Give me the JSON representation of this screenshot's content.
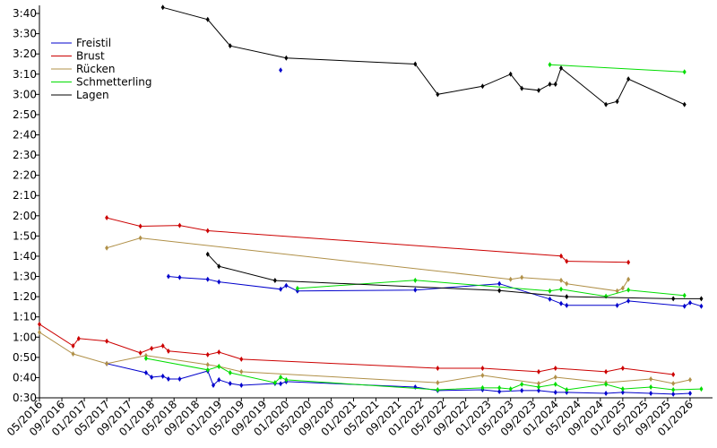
{
  "chart_data": {
    "type": "line",
    "xlim": [
      "05/2016",
      "05/2026"
    ],
    "ylim": [
      30,
      224
    ],
    "legend": "upper left",
    "xticks": [
      "05/2016",
      "09/2016",
      "01/2017",
      "05/2017",
      "09/2017",
      "01/2018",
      "05/2018",
      "09/2018",
      "01/2019",
      "05/2019",
      "09/2019",
      "01/2020",
      "05/2020",
      "09/2020",
      "01/2021",
      "05/2021",
      "09/2021",
      "01/2022",
      "05/2022",
      "09/2022",
      "01/2023",
      "05/2023",
      "09/2023",
      "01/2024",
      "05/2024",
      "09/2024",
      "01/2025",
      "05/2025",
      "09/2025",
      "01/2026"
    ],
    "yticks": [
      {
        "value": 30,
        "label": "0:30"
      },
      {
        "value": 40,
        "label": "0:40"
      },
      {
        "value": 50,
        "label": "0:50"
      },
      {
        "value": 60,
        "label": "1:00"
      },
      {
        "value": 70,
        "label": "1:10"
      },
      {
        "value": 80,
        "label": "1:20"
      },
      {
        "value": 90,
        "label": "1:30"
      },
      {
        "value": 100,
        "label": "1:40"
      },
      {
        "value": 110,
        "label": "1:50"
      },
      {
        "value": 120,
        "label": "2:00"
      },
      {
        "value": 130,
        "label": "2:10"
      },
      {
        "value": 140,
        "label": "2:20"
      },
      {
        "value": 150,
        "label": "2:30"
      },
      {
        "value": 160,
        "label": "2:40"
      },
      {
        "value": 170,
        "label": "2:50"
      },
      {
        "value": 180,
        "label": "3:00"
      },
      {
        "value": 190,
        "label": "3:10"
      },
      {
        "value": 200,
        "label": "3:20"
      },
      {
        "value": 210,
        "label": "3:30"
      },
      {
        "value": 220,
        "label": "3:40"
      }
    ],
    "series": [
      {
        "name": "Freistil",
        "color": "#0000cc",
        "x": [
          "12/2019",
          null,
          "04/2018",
          "06/2018",
          "11/2018",
          "01/2019",
          "12/2019",
          "01/2020",
          "03/2020",
          "12/2021",
          "03/2023",
          "12/2023",
          "02/2024",
          "03/2024",
          "12/2024",
          "02/2025",
          "12/2025",
          "01/2026",
          "03/2026",
          null,
          "05/2017",
          "12/2017",
          "01/2018",
          "03/2018",
          "04/2018",
          "06/2018",
          "11/2018",
          "12/2018",
          "01/2019",
          "03/2019",
          "05/2019",
          "11/2019",
          "12/2019",
          "01/2020",
          "12/2021",
          "04/2022",
          "12/2022",
          "03/2023",
          "07/2023",
          "10/2023",
          "01/2024",
          "03/2024",
          "10/2024",
          "01/2025",
          "06/2025",
          "10/2025",
          "01/2026"
        ],
        "values": [
          192,
          null,
          90,
          89.5,
          88.6,
          87.3,
          83.7,
          85.5,
          82.8,
          83.3,
          86.4,
          78.8,
          76.6,
          75.7,
          75.7,
          77.9,
          75.3,
          77,
          75.3,
          null,
          46.9,
          42.4,
          40.2,
          40.7,
          39.3,
          39.3,
          43.3,
          36.2,
          38.9,
          37.1,
          36.2,
          37.1,
          37,
          38,
          35.3,
          33.6,
          34,
          33.1,
          33.6,
          33.6,
          32.7,
          32.7,
          32.2,
          32.7,
          32.2,
          31.8,
          32.2
        ]
      },
      {
        "name": "Brust",
        "color": "#cc0000",
        "x": [
          "05/2017",
          "11/2017",
          "06/2018",
          "11/2018",
          "02/2024",
          "03/2024",
          "02/2025",
          null,
          "05/2016",
          "11/2016",
          "12/2016",
          "05/2017",
          "11/2017",
          "01/2018",
          "03/2018",
          "04/2018",
          "11/2018",
          "01/2019",
          "05/2019",
          "04/2022",
          "12/2022",
          "10/2023",
          "01/2024",
          "10/2024",
          "01/2025",
          "10/2025"
        ],
        "values": [
          119,
          114.8,
          115.2,
          112.6,
          100.1,
          97.5,
          97,
          null,
          66.4,
          55.7,
          59.3,
          58,
          52.2,
          54.4,
          55.7,
          53.1,
          51.3,
          52.6,
          49.1,
          44.6,
          44.6,
          42.9,
          44.6,
          42.9,
          44.6,
          41.5
        ]
      },
      {
        "name": "Rücken",
        "color": "#b09048",
        "x": [
          "05/2017",
          "11/2017",
          "05/2023",
          "07/2023",
          "02/2024",
          "03/2024",
          "12/2024",
          "01/2025",
          "02/2025",
          null,
          "05/2016",
          "11/2016",
          "05/2017",
          "12/2017",
          "11/2018",
          "01/2019",
          "05/2019",
          "04/2022",
          "12/2022",
          "10/2023",
          "01/2024",
          "10/2024",
          "06/2025",
          "10/2025",
          "01/2026"
        ],
        "values": [
          104.1,
          109,
          88.6,
          89.5,
          88.1,
          86.4,
          82.8,
          84.2,
          88.6,
          null,
          62.4,
          51.7,
          46.9,
          50.9,
          46.4,
          45.5,
          42.9,
          37.5,
          41.1,
          37.1,
          40.2,
          37.5,
          39.3,
          37.1,
          38.9
        ]
      },
      {
        "name": "Schmetterling",
        "color": "#00dd00",
        "x": [
          "12/2023",
          "12/2025",
          null,
          "03/2020",
          "12/2021",
          "12/2023",
          "02/2024",
          "10/2024",
          "02/2025",
          "12/2025",
          null,
          "12/2017",
          "11/2018",
          "01/2019",
          "03/2019",
          "11/2019",
          "12/2019",
          "01/2020",
          "04/2022",
          "12/2022",
          "03/2023",
          "05/2023",
          "07/2023",
          "10/2023",
          "01/2024",
          "03/2024",
          "10/2024",
          "01/2025",
          "06/2025",
          "10/2025",
          "03/2026"
        ],
        "values": [
          194.7,
          191.1,
          null,
          84.1,
          88.1,
          82.8,
          83.7,
          80.2,
          83.3,
          80.6,
          null,
          49.5,
          43.8,
          45.5,
          42.4,
          37.5,
          40.2,
          38.9,
          34,
          34.9,
          34.9,
          34.4,
          36.7,
          35.3,
          36.7,
          34,
          36.7,
          34.4,
          35.3,
          34,
          34.4
        ]
      },
      {
        "name": "Lagen",
        "color": "#000000",
        "x": [
          "03/2018",
          "11/2018",
          "03/2019",
          "01/2020",
          "12/2021",
          "04/2022",
          "12/2022",
          "05/2023",
          "07/2023",
          "10/2023",
          "12/2023",
          "01/2024",
          "02/2024",
          "10/2024",
          "12/2024",
          "02/2025",
          "12/2025",
          null,
          "11/2018",
          "01/2019",
          "11/2019",
          "03/2023",
          "03/2024",
          "10/2025",
          "03/2026"
        ],
        "values": [
          223,
          217,
          204,
          198,
          195,
          180,
          184,
          190,
          183,
          182,
          185,
          185,
          193,
          175,
          176.5,
          187.6,
          175,
          null,
          101,
          95,
          88,
          83,
          80,
          79,
          79
        ]
      }
    ]
  }
}
